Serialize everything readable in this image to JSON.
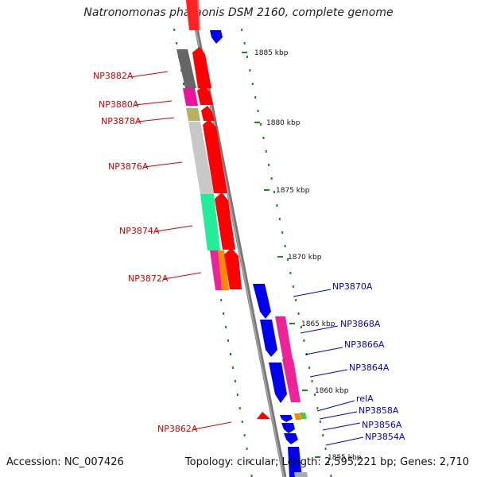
{
  "title": "Natronomonas pharaonis DSM 2160, complete genome",
  "accession": "Accession: NC_007426",
  "topology": "Topology: circular; Length: 2,595,221 bp; Genes: 2,710",
  "colors": {
    "forward_label": "#d40000",
    "reverse_label": "#0000cc",
    "forward_gene": "#ff0000",
    "reverse_gene": "#0000ee",
    "tick": "#1a8a1a",
    "backbone": "#777777"
  },
  "kbp_ticks": [
    "1885 kbp",
    "1880 kbp",
    "1875 kbp",
    "1870 kbp",
    "1865 kbp",
    "1860 kbp",
    "1855 kbp"
  ],
  "forward_labels": [
    "NP3882A",
    "NP3880A",
    "NP3878A",
    "NP3876A",
    "NP3874A",
    "NP3872A",
    "NP3862A"
  ],
  "reverse_labels": [
    "NP3870A",
    "NP3868A",
    "NP3866A",
    "NP3864A",
    "relA",
    "NP3858A",
    "NP3856A",
    "NP3854A"
  ]
}
